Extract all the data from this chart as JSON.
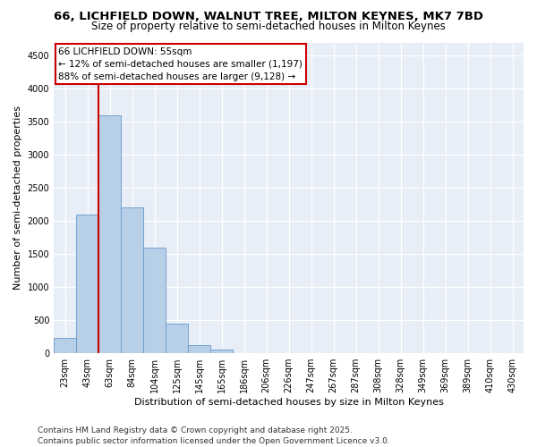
{
  "title": "66, LICHFIELD DOWN, WALNUT TREE, MILTON KEYNES, MK7 7BD",
  "subtitle": "Size of property relative to semi-detached houses in Milton Keynes",
  "xlabel": "Distribution of semi-detached houses by size in Milton Keynes",
  "ylabel": "Number of semi-detached properties",
  "categories": [
    "23sqm",
    "43sqm",
    "63sqm",
    "84sqm",
    "104sqm",
    "125sqm",
    "145sqm",
    "165sqm",
    "186sqm",
    "206sqm",
    "226sqm",
    "247sqm",
    "267sqm",
    "287sqm",
    "308sqm",
    "328sqm",
    "349sqm",
    "369sqm",
    "389sqm",
    "410sqm",
    "430sqm"
  ],
  "values": [
    230,
    2100,
    3600,
    2200,
    1600,
    450,
    130,
    55,
    0,
    0,
    0,
    0,
    0,
    0,
    0,
    0,
    0,
    0,
    0,
    0,
    0
  ],
  "bar_color": "#b8cfe8",
  "bar_edge_color": "#6699cc",
  "vline_x": 1.5,
  "vline_color": "#cc0000",
  "annotation_box_color": "#cc0000",
  "annotation_text_line1": "66 LICHFIELD DOWN: 55sqm",
  "annotation_text_line2": "← 12% of semi-detached houses are smaller (1,197)",
  "annotation_text_line3": "88% of semi-detached houses are larger (9,128) →",
  "background_color": "#e8eef7",
  "grid_color": "#ffffff",
  "ylim": [
    0,
    4700
  ],
  "yticks": [
    0,
    500,
    1000,
    1500,
    2000,
    2500,
    3000,
    3500,
    4000,
    4500
  ],
  "footer": "Contains HM Land Registry data © Crown copyright and database right 2025.\nContains public sector information licensed under the Open Government Licence v3.0.",
  "title_fontsize": 9.5,
  "subtitle_fontsize": 8.5,
  "axis_label_fontsize": 8,
  "tick_fontsize": 7,
  "annotation_fontsize": 7.5,
  "footer_fontsize": 6.5
}
